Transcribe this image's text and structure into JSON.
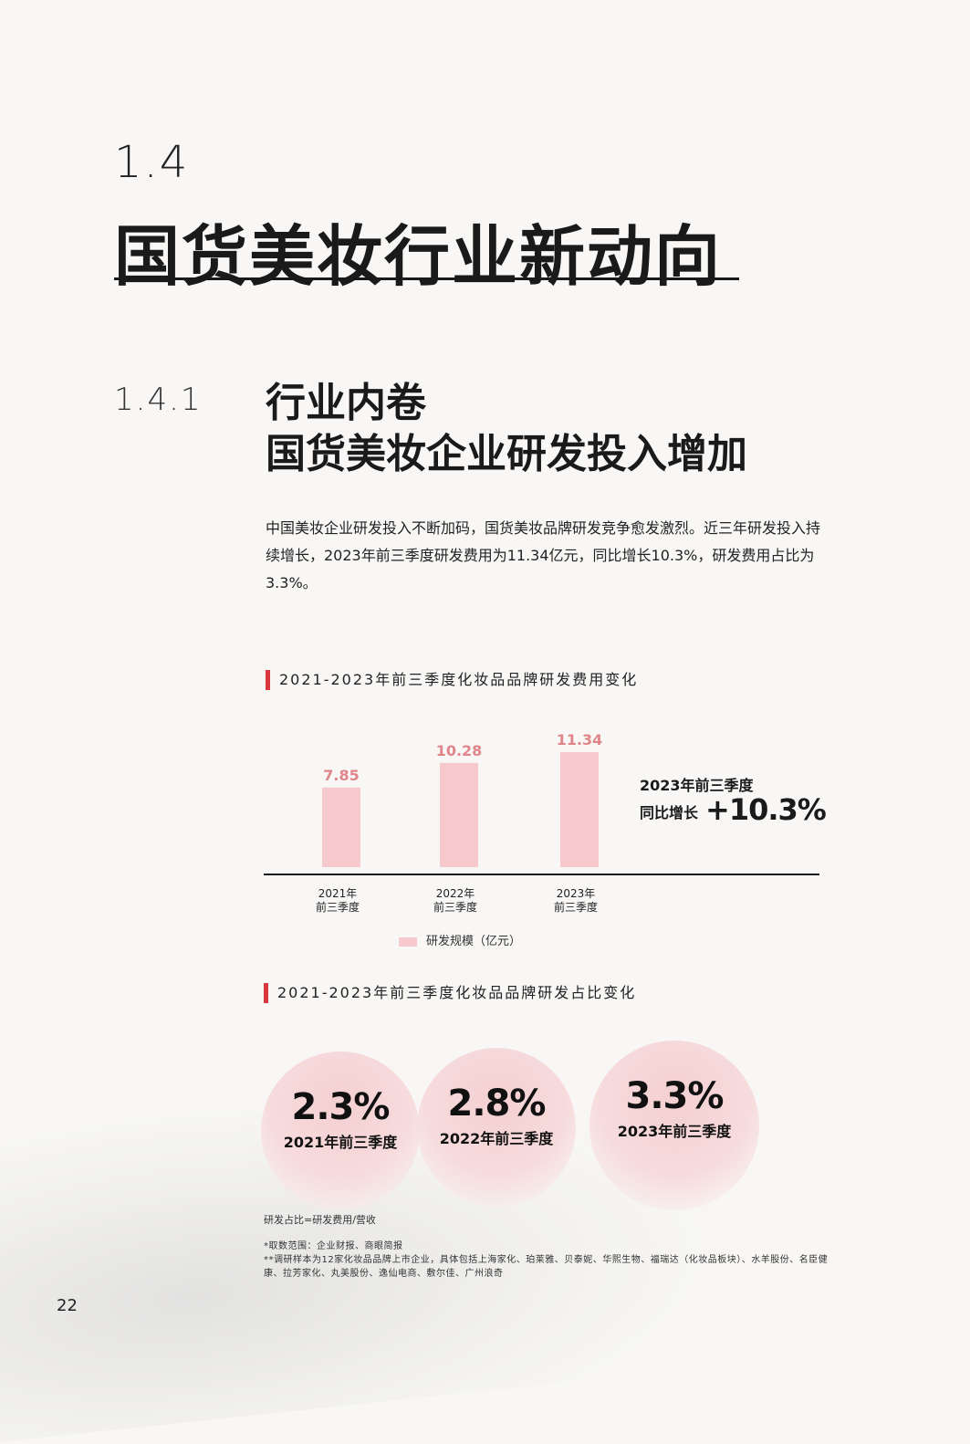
{
  "section": {
    "number": "1.4",
    "title": "国货美妆行业新动向"
  },
  "subsection": {
    "number": "1.4.1",
    "title_line1": "行业内卷",
    "title_line2": "国货美妆企业研发投入增加",
    "intro": "中国美妆企业研发投入不断加码，国货美妆品牌研发竞争愈发激烈。近三年研发投入持续增长，2023年前三季度研发费用为11.34亿元，同比增长10.3%，研发费用占比为3.3%。"
  },
  "chart1": {
    "heading": "2021-2023年前三季度化妆品品牌研发费用变化",
    "growth_label_line1": "2023年前三季度",
    "growth_label_line2": "同比增长",
    "growth_value": "+10.3%",
    "legend": "研发规模（亿元）"
  },
  "chart_data": {
    "type": "bar",
    "categories": [
      {
        "line1": "2021年",
        "line2": "前三季度"
      },
      {
        "line1": "2022年",
        "line2": "前三季度"
      },
      {
        "line1": "2023年",
        "line2": "前三季度"
      }
    ],
    "values": [
      7.85,
      10.28,
      11.34
    ],
    "value_labels": [
      "7.85",
      "10.28",
      "11.34"
    ],
    "series": [
      {
        "name": "研发规模（亿元）",
        "values": [
          7.85,
          10.28,
          11.34
        ]
      }
    ],
    "bar_color": "#f6c9cc",
    "label_color": "#e0868b",
    "ylim": [
      0,
      11.34
    ],
    "grid": false,
    "legend_position": "bottom"
  },
  "chart2": {
    "heading": "2021-2023年前三季度化妆品品牌研发占比变化",
    "items": [
      {
        "value": "2.3%",
        "label": "2021年前三季度"
      },
      {
        "value": "2.8%",
        "label": "2022年前三季度"
      },
      {
        "value": "3.3%",
        "label": "2023年前三季度"
      }
    ]
  },
  "formula": "研发占比=研发费用/营收",
  "notes": {
    "line1": "*取数范围：企业财报、商眼简报",
    "line2": "**调研样本为12家化妆品品牌上市企业，具体包括上海家化、珀莱雅、贝泰妮、华熙生物、福瑞达（化妆品板块）、水羊股份、名臣健康、拉芳家化、丸美股份、逸仙电商、敷尔佳、广州浪奇"
  },
  "page_number": "22",
  "colors": {
    "accent": "#d9363e",
    "bar": "#f6c9cc",
    "text": "#1a1a1a"
  }
}
